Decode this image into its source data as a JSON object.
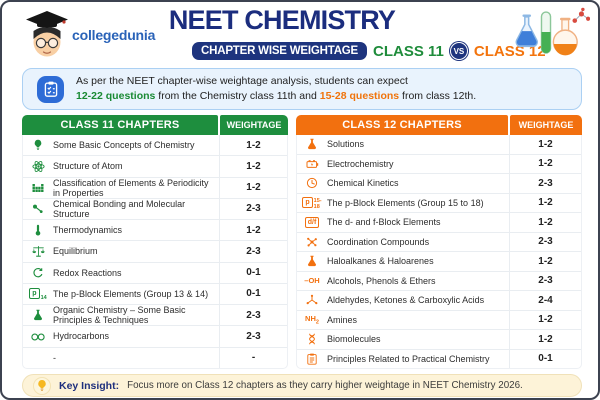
{
  "header": {
    "brand": "collegedunia",
    "title": "NEET CHEMISTRY",
    "subtitle": "CHAPTER WISE WEIGHTAGE",
    "class11_label": "CLASS 11",
    "vs_label": "VS",
    "class12_label": "CLASS 12"
  },
  "colors": {
    "navy": "#1b2d7e",
    "green": "#1e8e3e",
    "orange": "#f2700f",
    "info_bg": "#e9f3fd",
    "footer_bg": "#fdf3d8"
  },
  "info_box": {
    "line1": "As per the NEET chapter-wise weightage analysis, students can expect",
    "line2_green": "12-22 questions",
    "line2_mid": " from the Chemistry class 11th and ",
    "line2_orange": "15-28 questions",
    "line2_end": " from class 12th."
  },
  "class11_table": {
    "header": "CLASS 11 CHAPTERS",
    "weightage_header": "WEIGHTAGE",
    "rows": [
      {
        "icon": "lightbulb-icon",
        "chapter": "Some Basic Concepts of Chemistry",
        "weightage": "1-2"
      },
      {
        "icon": "atom-icon",
        "chapter": "Structure of Atom",
        "weightage": "1-2"
      },
      {
        "icon": "periodic-table-icon",
        "chapter": "Classification of Elements & Periodicity in Properties",
        "weightage": "1-2"
      },
      {
        "icon": "chemical-bond-icon",
        "chapter": "Chemical Bonding and Molecular Structure",
        "weightage": "2-3"
      },
      {
        "icon": "thermometer-icon",
        "chapter": "Thermodynamics",
        "weightage": "1-2"
      },
      {
        "icon": "balance-scale-icon",
        "chapter": "Equilibrium",
        "weightage": "2-3"
      },
      {
        "icon": "redox-cycle-icon",
        "chapter": "Redox Reactions",
        "weightage": "0-1"
      },
      {
        "icon": "p-block-13-14-icon",
        "chapter": "The p-Block Elements (Group 13 & 14)",
        "weightage": "0-1"
      },
      {
        "icon": "organic-flask-icon",
        "chapter": "Organic Chemistry – Some Basic Principles & Techniques",
        "weightage": "2-3"
      },
      {
        "icon": "hydrocarbon-rings-icon",
        "chapter": "Hydrocarbons",
        "weightage": "2-3"
      },
      {
        "icon": "",
        "chapter": "-",
        "weightage": "-"
      }
    ]
  },
  "class12_table": {
    "header": "CLASS 12 CHAPTERS",
    "weightage_header": "WEIGHTAGE",
    "rows": [
      {
        "icon": "flask-icon",
        "chapter": "Solutions",
        "weightage": "1-2"
      },
      {
        "icon": "battery-icon",
        "chapter": "Electrochemistry",
        "weightage": "1-2"
      },
      {
        "icon": "clock-icon",
        "chapter": "Chemical Kinetics",
        "weightage": "2-3"
      },
      {
        "icon": "p-block-15-18-icon",
        "chapter": "The p-Block Elements (Group 15 to 18)",
        "weightage": "1-2"
      },
      {
        "icon": "df-block-icon",
        "chapter": "The d- and f-Block Elements",
        "weightage": "1-2"
      },
      {
        "icon": "coordination-icon",
        "chapter": "Coordination Compounds",
        "weightage": "2-3"
      },
      {
        "icon": "haloalkane-flask-icon",
        "chapter": "Haloalkanes & Haloarenes",
        "weightage": "1-2"
      },
      {
        "icon": "oh-group-icon",
        "chapter": "Alcohols, Phenols & Ethers",
        "weightage": "2-3"
      },
      {
        "icon": "carbonyl-icon",
        "chapter": "Aldehydes, Ketones & Carboxylic Acids",
        "weightage": "2-4"
      },
      {
        "icon": "nh2-group-icon",
        "chapter": "Amines",
        "weightage": "1-2"
      },
      {
        "icon": "dna-icon",
        "chapter": "Biomolecules",
        "weightage": "1-2"
      },
      {
        "icon": "clipboard-icon",
        "chapter": "Principles Related to Practical Chemistry",
        "weightage": "0-1"
      }
    ]
  },
  "footer": {
    "label": "Key Insight:",
    "text": "Focus more on Class 12 chapters as they carry higher weightage in NEET Chemistry 2026."
  }
}
